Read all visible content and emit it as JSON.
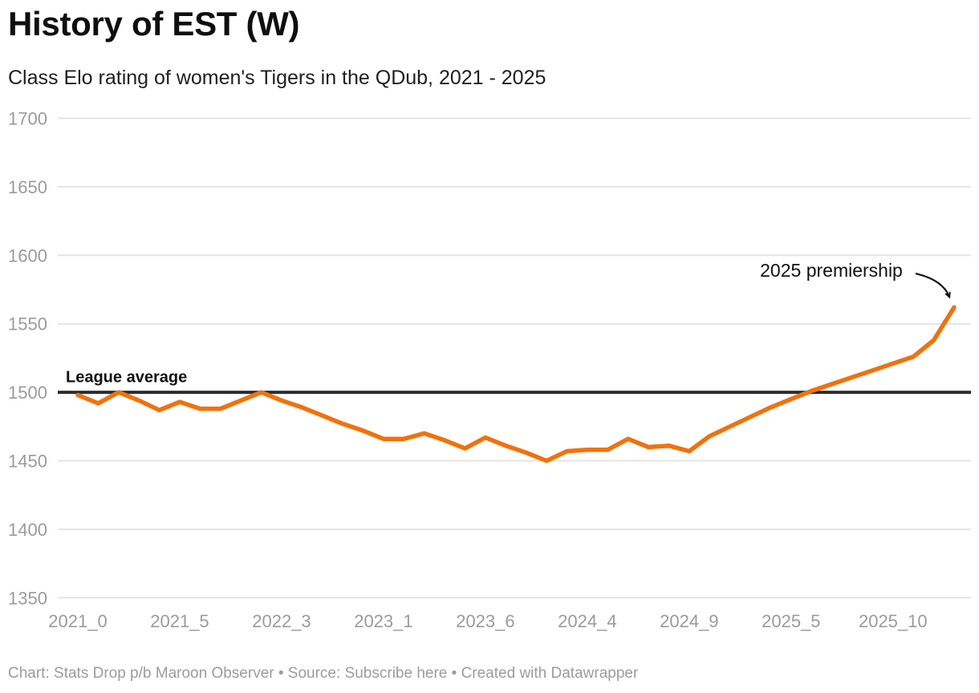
{
  "header": {
    "title": "History of EST (W)",
    "subtitle": "Class Elo rating of women's Tigers in the QDub, 2021 - 2025"
  },
  "footer": {
    "prefix": "Chart: Stats Drop p/b Maroon Observer • Source: ",
    "link": "Subscribe here",
    "suffix": " • Created with Datawrapper"
  },
  "chart_data": {
    "type": "line",
    "title": "History of EST (W)",
    "subtitle": "Class Elo rating of women's Tigers in the QDub, 2021 - 2025",
    "xlabel": "",
    "ylabel": "",
    "ylim": [
      1350,
      1700
    ],
    "grid": "horizontal",
    "values": [
      1498,
      1492,
      1500,
      1494,
      1487,
      1493,
      1488,
      1488,
      1494,
      1500,
      1494,
      1489,
      1483,
      1477,
      1472,
      1466,
      1466,
      1470,
      1465,
      1459,
      1467,
      1461,
      1456,
      1450,
      1457,
      1458,
      1458,
      1466,
      1460,
      1461,
      1457,
      1468,
      1475,
      1482,
      1489,
      1495,
      1501,
      1506,
      1511,
      1516,
      1521,
      1526,
      1538,
      1562
    ],
    "x_ticks": [
      {
        "index": 0,
        "label": "2021_0"
      },
      {
        "index": 5,
        "label": "2021_5"
      },
      {
        "index": 10,
        "label": "2022_3"
      },
      {
        "index": 15,
        "label": "2023_1"
      },
      {
        "index": 20,
        "label": "2023_6"
      },
      {
        "index": 25,
        "label": "2024_4"
      },
      {
        "index": 30,
        "label": "2024_9"
      },
      {
        "index": 35,
        "label": "2025_5"
      },
      {
        "index": 40,
        "label": "2025_10"
      }
    ],
    "y_ticks": [
      1700,
      1650,
      1600,
      1550,
      1500,
      1450,
      1400,
      1350
    ],
    "reference_line": {
      "value": 1500,
      "label": "League average"
    },
    "annotation": {
      "text": "2025 premiership",
      "target_index": 43
    },
    "colors": {
      "line": "#F0720C",
      "reference": "#2C2C2C",
      "grid": "#E4E4E4",
      "tick_text": "#9B9B9B",
      "annotation_text": "#111111"
    }
  }
}
